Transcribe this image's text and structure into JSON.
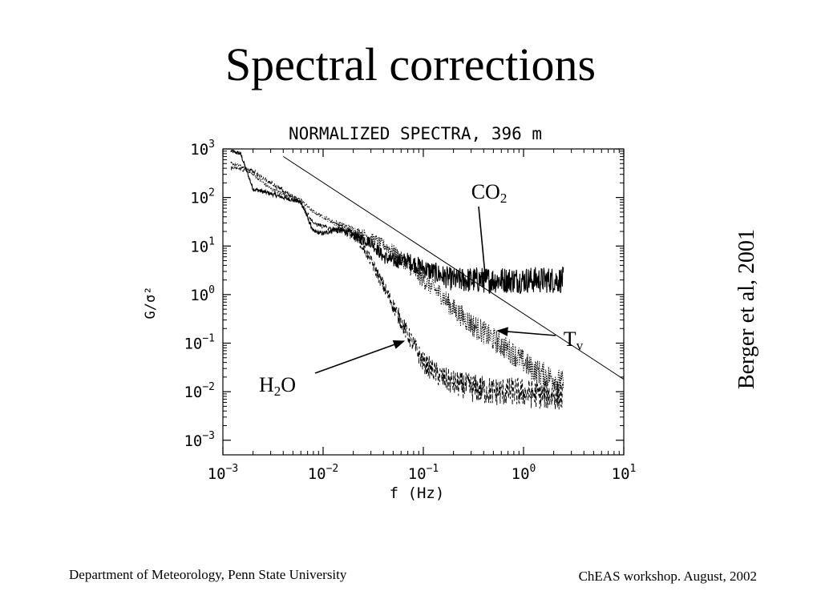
{
  "slide": {
    "title": "Spectral corrections",
    "credit": "Berger et al, 2001",
    "footer_left": "Department of Meteorology, Penn State University",
    "footer_right": "ChEAS workshop. August, 2002"
  },
  "chart_data": {
    "type": "line",
    "title": "NORMALIZED SPECTRA, 396 m",
    "xlabel": "f (Hz)",
    "ylabel": "G/σ²",
    "x_scale": "log",
    "y_scale": "log",
    "xlim": [
      0.001,
      10
    ],
    "ylim": [
      0.0005,
      1000
    ],
    "x_ticks": [
      {
        "value": 0.001,
        "base": "10",
        "exp": "−3"
      },
      {
        "value": 0.01,
        "base": "10",
        "exp": "−2"
      },
      {
        "value": 0.1,
        "base": "10",
        "exp": "−1"
      },
      {
        "value": 1,
        "base": "10",
        "exp": "0"
      },
      {
        "value": 10,
        "base": "10",
        "exp": "1"
      }
    ],
    "y_ticks": [
      {
        "value": 1000,
        "base": "10",
        "exp": "3"
      },
      {
        "value": 100,
        "base": "10",
        "exp": "2"
      },
      {
        "value": 10,
        "base": "10",
        "exp": "1"
      },
      {
        "value": 1,
        "base": "10",
        "exp": "0"
      },
      {
        "value": 0.1,
        "base": "10",
        "exp": "−1"
      },
      {
        "value": 0.01,
        "base": "10",
        "exp": "−2"
      },
      {
        "value": 0.001,
        "base": "10",
        "exp": "−3"
      }
    ],
    "grid": false,
    "reference_line": {
      "x": [
        0.004,
        10
      ],
      "y": [
        700,
        0.018
      ]
    },
    "series": [
      {
        "name": "CO₂",
        "label_sub_parts": [
          "CO",
          "2"
        ],
        "dash": "solid",
        "noise": 0.55,
        "x": [
          0.0012,
          0.0015,
          0.002,
          0.003,
          0.004,
          0.006,
          0.008,
          0.01,
          0.013,
          0.017,
          0.022,
          0.03,
          0.04,
          0.05,
          0.07,
          0.1,
          0.15,
          0.2,
          0.3,
          0.5,
          0.8,
          1.2,
          2.5
        ],
        "y": [
          900,
          800,
          150,
          120,
          100,
          80,
          20,
          18,
          22,
          20,
          15,
          12,
          6,
          5,
          5,
          3.5,
          2.5,
          2,
          2,
          2,
          2,
          2,
          2
        ]
      },
      {
        "name": "Tᵥ",
        "label_sub_parts": [
          "T",
          "v"
        ],
        "dash": "dotted",
        "noise": 0.5,
        "x": [
          0.0012,
          0.0015,
          0.002,
          0.003,
          0.004,
          0.006,
          0.008,
          0.01,
          0.013,
          0.017,
          0.022,
          0.03,
          0.05,
          0.07,
          0.1,
          0.15,
          0.2,
          0.3,
          0.5,
          0.8,
          1.2,
          2.5
        ],
        "y": [
          500,
          450,
          300,
          150,
          120,
          90,
          50,
          40,
          30,
          25,
          20,
          15,
          8,
          4,
          2,
          1,
          0.5,
          0.25,
          0.12,
          0.06,
          0.03,
          0.015
        ]
      },
      {
        "name": "H₂O",
        "label_sub_parts": [
          "H",
          "2",
          "O"
        ],
        "dash": "dashed",
        "noise": 0.6,
        "x": [
          0.0012,
          0.0015,
          0.002,
          0.003,
          0.004,
          0.006,
          0.008,
          0.01,
          0.013,
          0.017,
          0.022,
          0.03,
          0.04,
          0.05,
          0.07,
          0.1,
          0.15,
          0.2,
          0.3,
          0.5,
          0.8,
          1.2,
          2.5
        ],
        "y": [
          400,
          380,
          350,
          200,
          140,
          80,
          30,
          25,
          22,
          20,
          15,
          5,
          1.5,
          0.6,
          0.15,
          0.04,
          0.02,
          0.015,
          0.012,
          0.01,
          0.01,
          0.009,
          0.008
        ]
      }
    ],
    "annotations": [
      {
        "series": "CO₂",
        "at_x": 0.42,
        "at_y": 1.8
      },
      {
        "series": "Tᵥ",
        "at_x": 0.55,
        "at_y": 0.18
      },
      {
        "series": "H₂O",
        "at_x": 0.064,
        "at_y": 0.11
      }
    ]
  }
}
